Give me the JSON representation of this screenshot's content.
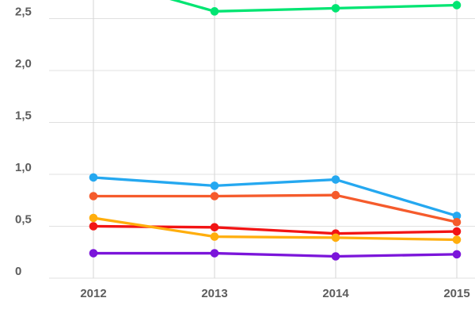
{
  "chart_data": {
    "type": "line",
    "title": "",
    "x_categories": [
      "2012",
      "2013",
      "2014",
      "2015"
    ],
    "y_axis": {
      "tick_values": [
        0,
        0.5,
        1.0,
        1.5,
        2.0,
        2.5
      ],
      "tick_labels": [
        "0",
        "0,5",
        "1,0",
        "1,5",
        "2,0",
        "2,5"
      ],
      "visible_range": [
        0,
        2.67
      ],
      "decimal_separator": ","
    },
    "grid": true,
    "legend_position": "none",
    "series": [
      {
        "name": "green-series",
        "color": "#00E572",
        "values": [
          2.9,
          2.57,
          2.6,
          2.63
        ]
      },
      {
        "name": "blue-series",
        "color": "#25A8F0",
        "values": [
          0.97,
          0.89,
          0.95,
          0.6
        ]
      },
      {
        "name": "orange-series",
        "color": "#F55B2C",
        "values": [
          0.79,
          0.79,
          0.8,
          0.54
        ]
      },
      {
        "name": "red-series",
        "color": "#F21414",
        "values": [
          0.5,
          0.49,
          0.43,
          0.45
        ]
      },
      {
        "name": "yellow-series",
        "color": "#FFAE0D",
        "values": [
          0.58,
          0.4,
          0.39,
          0.37
        ]
      },
      {
        "name": "purple-series",
        "color": "#7B15DA",
        "values": [
          0.24,
          0.24,
          0.21,
          0.23
        ]
      }
    ],
    "notes": "green series 2012 value (~2.9) is clipped above the visible top edge of the chart"
  },
  "colors": {
    "background": "#FFFFFF",
    "grid_horizontal": "#E0E0E0",
    "grid_vertical": "#D6D6D6",
    "axis_label": "#5C5C5C"
  }
}
